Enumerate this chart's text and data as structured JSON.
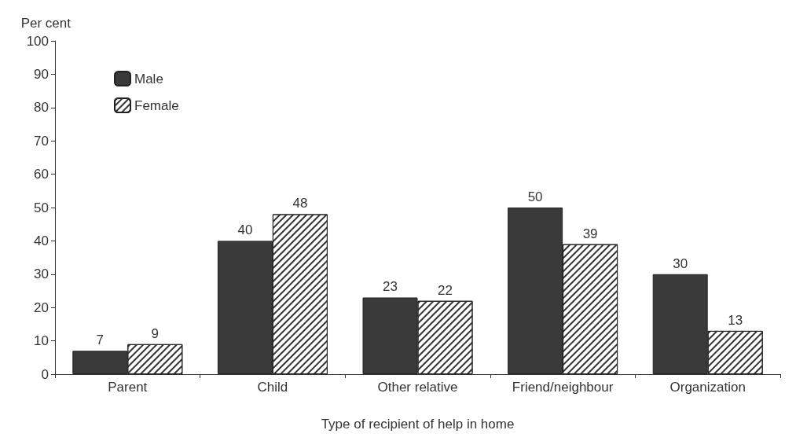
{
  "chart_data": {
    "type": "bar",
    "xlabel": "Type of recipient of help in home",
    "ylabel": "Per cent",
    "categories": [
      "Parent",
      "Child",
      "Other relative",
      "Friend/neighbour",
      "Organization"
    ],
    "series": [
      {
        "name": "Male",
        "color": "#3a3a3a",
        "values": [
          7,
          40,
          23,
          50,
          30
        ]
      },
      {
        "name": "Female",
        "color": "#ffffff",
        "values": [
          9,
          48,
          22,
          39,
          13
        ]
      }
    ],
    "ylim": [
      0,
      100
    ],
    "yticks": [
      0,
      10,
      20,
      30,
      40,
      50,
      60,
      70,
      80,
      90,
      100
    ],
    "grid": false,
    "legend": "top left",
    "data_labels": true
  }
}
